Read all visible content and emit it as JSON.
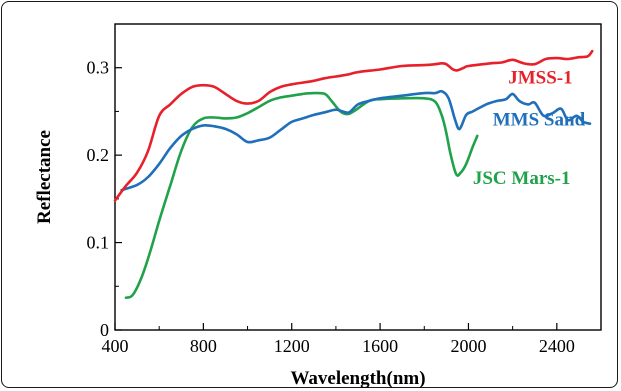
{
  "chart_data": {
    "type": "line",
    "title": "",
    "xlabel": "Wavelength(nm)",
    "ylabel": "Reflectance",
    "xlim": [
      400,
      2600
    ],
    "ylim": [
      0,
      0.35
    ],
    "xticks": [
      400,
      800,
      1200,
      1600,
      2000,
      2400
    ],
    "yticks": [
      0,
      0.1,
      0.2,
      0.3
    ],
    "ytick_labels": [
      "0",
      "0.1",
      "0.2",
      "0.3"
    ],
    "grid": false,
    "legend": "inline labels",
    "series": [
      {
        "name": "JMSS-1",
        "color": "#e8202a",
        "points": [
          [
            400,
            0.148
          ],
          [
            450,
            0.165
          ],
          [
            500,
            0.18
          ],
          [
            550,
            0.205
          ],
          [
            600,
            0.245
          ],
          [
            650,
            0.258
          ],
          [
            700,
            0.27
          ],
          [
            750,
            0.278
          ],
          [
            800,
            0.28
          ],
          [
            850,
            0.278
          ],
          [
            900,
            0.27
          ],
          [
            950,
            0.262
          ],
          [
            1000,
            0.259
          ],
          [
            1050,
            0.262
          ],
          [
            1100,
            0.272
          ],
          [
            1150,
            0.278
          ],
          [
            1200,
            0.281
          ],
          [
            1250,
            0.283
          ],
          [
            1300,
            0.285
          ],
          [
            1350,
            0.288
          ],
          [
            1400,
            0.29
          ],
          [
            1450,
            0.292
          ],
          [
            1500,
            0.295
          ],
          [
            1600,
            0.298
          ],
          [
            1700,
            0.302
          ],
          [
            1800,
            0.303
          ],
          [
            1850,
            0.304
          ],
          [
            1880,
            0.305
          ],
          [
            1900,
            0.304
          ],
          [
            1930,
            0.298
          ],
          [
            1950,
            0.297
          ],
          [
            1980,
            0.3
          ],
          [
            2000,
            0.302
          ],
          [
            2100,
            0.305
          ],
          [
            2150,
            0.306
          ],
          [
            2200,
            0.309
          ],
          [
            2250,
            0.305
          ],
          [
            2300,
            0.304
          ],
          [
            2350,
            0.31
          ],
          [
            2400,
            0.311
          ],
          [
            2450,
            0.31
          ],
          [
            2500,
            0.312
          ],
          [
            2540,
            0.313
          ],
          [
            2560,
            0.319
          ]
        ]
      },
      {
        "name": "MMS Sand",
        "color": "#1f6fba",
        "points": [
          [
            430,
            0.16
          ],
          [
            500,
            0.166
          ],
          [
            550,
            0.175
          ],
          [
            600,
            0.19
          ],
          [
            650,
            0.208
          ],
          [
            700,
            0.222
          ],
          [
            750,
            0.23
          ],
          [
            800,
            0.234
          ],
          [
            850,
            0.233
          ],
          [
            900,
            0.23
          ],
          [
            950,
            0.224
          ],
          [
            1000,
            0.215
          ],
          [
            1050,
            0.217
          ],
          [
            1100,
            0.22
          ],
          [
            1150,
            0.229
          ],
          [
            1200,
            0.238
          ],
          [
            1250,
            0.242
          ],
          [
            1300,
            0.246
          ],
          [
            1350,
            0.249
          ],
          [
            1400,
            0.252
          ],
          [
            1430,
            0.25
          ],
          [
            1460,
            0.249
          ],
          [
            1500,
            0.258
          ],
          [
            1550,
            0.262
          ],
          [
            1600,
            0.265
          ],
          [
            1700,
            0.268
          ],
          [
            1800,
            0.271
          ],
          [
            1850,
            0.271
          ],
          [
            1880,
            0.273
          ],
          [
            1910,
            0.265
          ],
          [
            1940,
            0.24
          ],
          [
            1960,
            0.23
          ],
          [
            1990,
            0.246
          ],
          [
            2020,
            0.25
          ],
          [
            2080,
            0.258
          ],
          [
            2130,
            0.262
          ],
          [
            2170,
            0.264
          ],
          [
            2200,
            0.27
          ],
          [
            2230,
            0.262
          ],
          [
            2270,
            0.258
          ],
          [
            2300,
            0.26
          ],
          [
            2340,
            0.245
          ],
          [
            2380,
            0.248
          ],
          [
            2420,
            0.253
          ],
          [
            2450,
            0.24
          ],
          [
            2490,
            0.245
          ],
          [
            2520,
            0.238
          ],
          [
            2550,
            0.236
          ]
        ]
      },
      {
        "name": "JSC Mars-1",
        "color": "#1fa24a",
        "points": [
          [
            450,
            0.037
          ],
          [
            480,
            0.04
          ],
          [
            520,
            0.06
          ],
          [
            560,
            0.09
          ],
          [
            600,
            0.125
          ],
          [
            650,
            0.165
          ],
          [
            700,
            0.205
          ],
          [
            750,
            0.232
          ],
          [
            800,
            0.242
          ],
          [
            850,
            0.243
          ],
          [
            900,
            0.242
          ],
          [
            950,
            0.243
          ],
          [
            1000,
            0.248
          ],
          [
            1050,
            0.255
          ],
          [
            1100,
            0.262
          ],
          [
            1150,
            0.266
          ],
          [
            1200,
            0.268
          ],
          [
            1250,
            0.27
          ],
          [
            1300,
            0.271
          ],
          [
            1350,
            0.27
          ],
          [
            1380,
            0.262
          ],
          [
            1420,
            0.25
          ],
          [
            1450,
            0.247
          ],
          [
            1480,
            0.25
          ],
          [
            1550,
            0.262
          ],
          [
            1600,
            0.264
          ],
          [
            1700,
            0.265
          ],
          [
            1800,
            0.265
          ],
          [
            1850,
            0.261
          ],
          [
            1880,
            0.245
          ],
          [
            1900,
            0.225
          ],
          [
            1920,
            0.2
          ],
          [
            1945,
            0.178
          ],
          [
            1965,
            0.18
          ],
          [
            1990,
            0.19
          ],
          [
            2020,
            0.21
          ],
          [
            2040,
            0.222
          ]
        ]
      }
    ],
    "annotations": [
      {
        "text": "JMSS-1",
        "x": 2180,
        "y": 0.282,
        "color": "#e8202a"
      },
      {
        "text": "MMS Sand",
        "x": 2110,
        "y": 0.234,
        "color": "#1f6fba"
      },
      {
        "text": "JSC Mars-1",
        "x": 2020,
        "y": 0.167,
        "color": "#1fa24a"
      }
    ]
  }
}
